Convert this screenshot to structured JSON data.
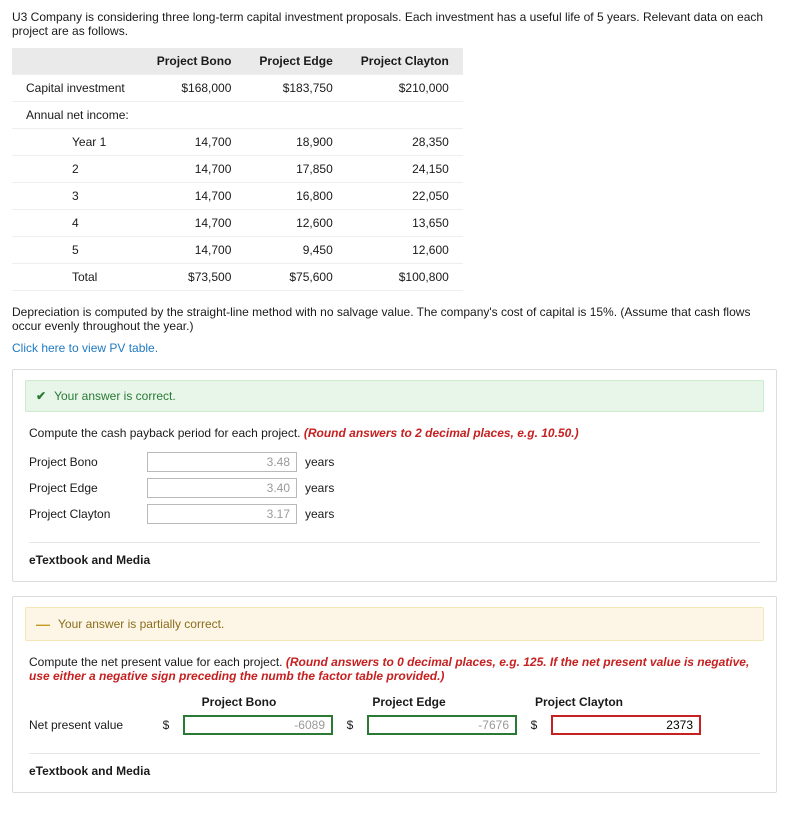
{
  "intro": "U3 Company is considering three long-term capital investment proposals. Each investment has a useful life of 5 years. Relevant data on each project are as follows.",
  "table": {
    "headers": [
      "",
      "Project Bono",
      "Project Edge",
      "Project Clayton"
    ],
    "rows": [
      {
        "label": "Capital investment",
        "bono": "$168,000",
        "edge": "$183,750",
        "clayton": "$210,000"
      },
      {
        "label": "Annual net income:",
        "bono": "",
        "edge": "",
        "clayton": ""
      },
      {
        "label": "Year 1",
        "bono": "14,700",
        "edge": "18,900",
        "clayton": "28,350",
        "indent": true
      },
      {
        "label": "2",
        "bono": "14,700",
        "edge": "17,850",
        "clayton": "24,150",
        "indent": true
      },
      {
        "label": "3",
        "bono": "14,700",
        "edge": "16,800",
        "clayton": "22,050",
        "indent": true
      },
      {
        "label": "4",
        "bono": "14,700",
        "edge": "12,600",
        "clayton": "13,650",
        "indent": true
      },
      {
        "label": "5",
        "bono": "14,700",
        "edge": "9,450",
        "clayton": "12,600",
        "indent": true
      }
    ],
    "total": {
      "label": "Total",
      "bono": "$73,500",
      "edge": "$75,600",
      "clayton": "$100,800"
    }
  },
  "depreciation_note": "Depreciation is computed by the straight-line method with no salvage value. The company's cost of capital is 15%. (Assume that cash flows occur evenly throughout the year.)",
  "pv_link": "Click here to view PV table.",
  "card1": {
    "banner": "Your answer is correct.",
    "prompt_plain": "Compute the cash payback period for each project. ",
    "prompt_hint": "(Round answers to 2 decimal places, e.g. 10.50.)",
    "rows": [
      {
        "label": "Project Bono",
        "value": "3.48",
        "unit": "years"
      },
      {
        "label": "Project Edge",
        "value": "3.40",
        "unit": "years"
      },
      {
        "label": "Project Clayton",
        "value": "3.17",
        "unit": "years"
      }
    ],
    "footer": "eTextbook and Media"
  },
  "card2": {
    "banner": "Your answer is partially correct.",
    "prompt_plain": "Compute the net present value for each project. ",
    "prompt_hint": "(Round answers to 0 decimal places, e.g. 125. If the net present value is negative, use either a negative sign preceding the numb the factor table provided.)",
    "headers": [
      "Project Bono",
      "Project Edge",
      "Project Clayton"
    ],
    "row_label": "Net present value",
    "currency": "$",
    "values": [
      {
        "v": "-6089",
        "state": "green"
      },
      {
        "v": "-7676",
        "state": "green"
      },
      {
        "v": "2373",
        "state": "red"
      }
    ],
    "footer": "eTextbook and Media"
  }
}
